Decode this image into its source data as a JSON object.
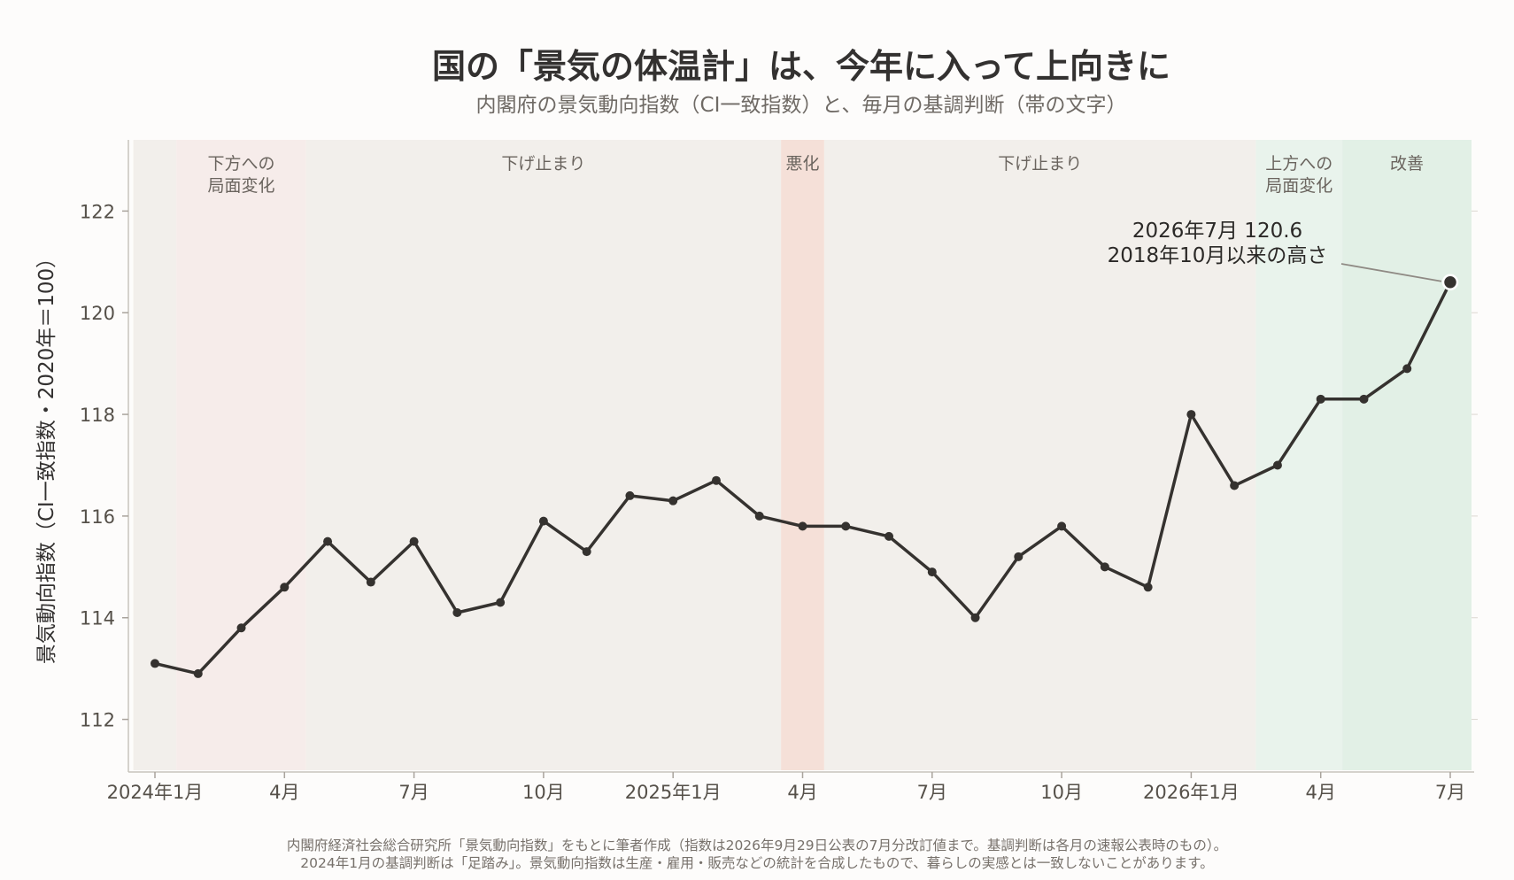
{
  "chart_data": {
    "type": "line",
    "title": "国の「景気の体温計」は、今年に入って上向きに",
    "subtitle": "内閣府の景気動向指数（CI一致指数）と、毎月の基調判断（帯の文字）",
    "ylabel": "景気動向指数（CI一致指数・2020年＝100）",
    "xlabel": "",
    "ylim": [
      111,
      123.4
    ],
    "yticks": [
      112,
      114,
      116,
      118,
      120,
      122
    ],
    "x_tick_labels": [
      {
        "month_index": 0,
        "label": "2024年1月"
      },
      {
        "month_index": 3,
        "label": "4月"
      },
      {
        "month_index": 6,
        "label": "7月"
      },
      {
        "month_index": 9,
        "label": "10月"
      },
      {
        "month_index": 12,
        "label": "2025年1月"
      },
      {
        "month_index": 15,
        "label": "4月"
      },
      {
        "month_index": 18,
        "label": "7月"
      },
      {
        "month_index": 21,
        "label": "10月"
      },
      {
        "month_index": 24,
        "label": "2026年1月"
      },
      {
        "month_index": 27,
        "label": "4月"
      },
      {
        "month_index": 30,
        "label": "7月"
      }
    ],
    "x": [
      "2024-01",
      "2024-02",
      "2024-03",
      "2024-04",
      "2024-05",
      "2024-06",
      "2024-07",
      "2024-08",
      "2024-09",
      "2024-10",
      "2024-11",
      "2024-12",
      "2025-01",
      "2025-02",
      "2025-03",
      "2025-04",
      "2025-05",
      "2025-06",
      "2025-07",
      "2025-08",
      "2025-09",
      "2025-10",
      "2025-11",
      "2025-12",
      "2026-01",
      "2026-02",
      "2026-03",
      "2026-04",
      "2026-05",
      "2026-06",
      "2026-07"
    ],
    "values": [
      113.1,
      112.9,
      113.8,
      114.6,
      115.5,
      114.7,
      115.5,
      114.1,
      114.3,
      115.9,
      115.3,
      116.4,
      116.3,
      116.7,
      116.0,
      115.8,
      115.8,
      115.6,
      114.9,
      114.0,
      115.2,
      115.8,
      115.0,
      114.6,
      118.0,
      116.6,
      117.0,
      118.3,
      118.3,
      118.9,
      120.6
    ],
    "bands": [
      {
        "start": "2024-01",
        "end": "2024-01",
        "label": "",
        "color": "#f2efeb"
      },
      {
        "start": "2024-02",
        "end": "2024-04",
        "label": "下方への\n局面変化",
        "color": "#f6ecea"
      },
      {
        "start": "2024-05",
        "end": "2025-03",
        "label": "下げ止まり",
        "color": "#f2efeb"
      },
      {
        "start": "2025-04",
        "end": "2025-04",
        "label": "悪化",
        "color": "#f5e0d8"
      },
      {
        "start": "2025-05",
        "end": "2026-02",
        "label": "下げ止まり",
        "color": "#f2efeb"
      },
      {
        "start": "2026-03",
        "end": "2026-04",
        "label": "上方への\n局面変化",
        "color": "#e9f3ec"
      },
      {
        "start": "2026-05",
        "end": "2026-07",
        "label": "改善",
        "color": "#e2f0e6"
      }
    ],
    "annotation": {
      "point": "2026-07",
      "line1": "2026年7月 120.6",
      "line2": "2018年10月以来の高さ"
    },
    "line_color": "#35322f",
    "grid": false
  },
  "footnote": {
    "line1": "内閣府経済社会総合研究所「景気動向指数」をもとに筆者作成（指数は2026年9月29日公表の7月分改訂値まで。基調判断は各月の速報公表時のもの）。",
    "line2": "2024年1月の基調判断は「足踏み」。景気動向指数は生産・雇用・販売などの統計を合成したもので、暮らしの実感とは一致しないことがあります。"
  }
}
